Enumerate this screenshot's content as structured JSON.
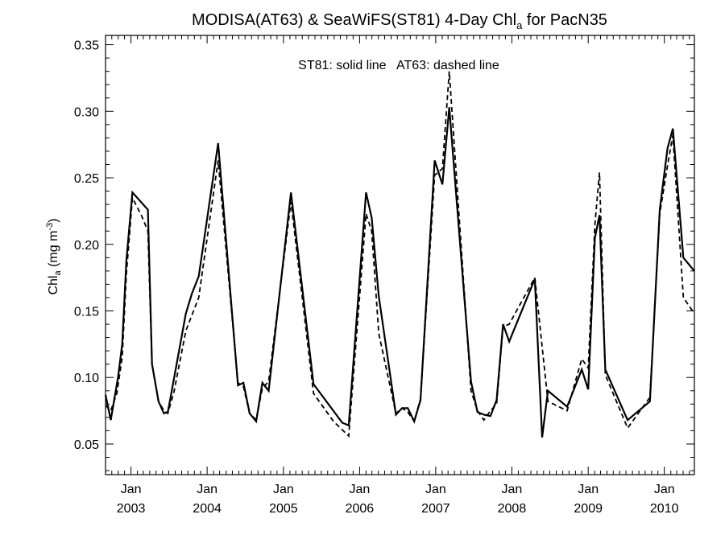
{
  "chart_data": {
    "type": "line",
    "title": "MODISA(AT63) & SeaWiFS(ST81) 4-Day Chl",
    "title_sub": "a",
    "title_suffix": " for PacN35",
    "annotation": "ST81: solid line   AT63: dashed line",
    "ylabel": "Chl",
    "ylabel_sub": "a",
    "ylabel_unit": " (mg m",
    "ylabel_sup": "-3",
    "ylabel_close": ")",
    "ylim": [
      0.027,
      0.357
    ],
    "xlim": [
      "2002-09-01",
      "2010-05-25"
    ],
    "y_ticks": [
      0.05,
      0.1,
      0.15,
      0.2,
      0.25,
      0.3,
      0.35
    ],
    "y_tick_labels": [
      "0.05",
      "0.10",
      "0.15",
      "0.20",
      "0.25",
      "0.30",
      "0.35"
    ],
    "x_ticks": [
      "2003-01-01",
      "2004-01-01",
      "2005-01-01",
      "2006-01-01",
      "2007-01-01",
      "2008-01-01",
      "2009-01-01",
      "2010-01-01"
    ],
    "x_tick_month_labels": [
      "Jan",
      "Jan",
      "Jan",
      "Jan",
      "Jan",
      "Jan",
      "Jan",
      "Jan"
    ],
    "x_tick_year_labels": [
      "2003",
      "2004",
      "2005",
      "2006",
      "2007",
      "2008",
      "2009",
      "2010"
    ],
    "grid": false,
    "series": [
      {
        "name": "ST81",
        "line_style": "solid",
        "color": "#000000",
        "points": [
          [
            "2002-09-01",
            0.087
          ],
          [
            "2002-09-26",
            0.068
          ],
          [
            "2002-10-31",
            0.1
          ],
          [
            "2002-11-20",
            0.125
          ],
          [
            "2002-12-10",
            0.188
          ],
          [
            "2003-01-08",
            0.239
          ],
          [
            "2003-03-23",
            0.226
          ],
          [
            "2003-04-12",
            0.11
          ],
          [
            "2003-05-13",
            0.082
          ],
          [
            "2003-06-08",
            0.073
          ],
          [
            "2003-06-27",
            0.074
          ],
          [
            "2003-09-21",
            0.148
          ],
          [
            "2003-10-20",
            0.163
          ],
          [
            "2003-11-22",
            0.176
          ],
          [
            "2004-02-23",
            0.276
          ],
          [
            "2004-05-28",
            0.094
          ],
          [
            "2004-06-23",
            0.096
          ],
          [
            "2004-07-23",
            0.073
          ],
          [
            "2004-08-23",
            0.067
          ],
          [
            "2004-09-22",
            0.096
          ],
          [
            "2004-10-22",
            0.09
          ],
          [
            "2005-02-06",
            0.239
          ],
          [
            "2005-05-25",
            0.095
          ],
          [
            "2005-10-10",
            0.066
          ],
          [
            "2005-11-10",
            0.064
          ],
          [
            "2006-02-01",
            0.239
          ],
          [
            "2006-02-28",
            0.22
          ],
          [
            "2006-04-03",
            0.161
          ],
          [
            "2006-06-24",
            0.072
          ],
          [
            "2006-07-24",
            0.077
          ],
          [
            "2006-08-20",
            0.077
          ],
          [
            "2006-09-20",
            0.067
          ],
          [
            "2006-10-20",
            0.083
          ],
          [
            "2006-12-27",
            0.263
          ],
          [
            "2007-02-02",
            0.245
          ],
          [
            "2007-03-07",
            0.303
          ],
          [
            "2007-06-19",
            0.097
          ],
          [
            "2007-07-20",
            0.074
          ],
          [
            "2007-08-20",
            0.072
          ],
          [
            "2007-09-20",
            0.071
          ],
          [
            "2007-10-20",
            0.083
          ],
          [
            "2007-11-20",
            0.14
          ],
          [
            "2007-12-19",
            0.127
          ],
          [
            "2008-04-20",
            0.174
          ],
          [
            "2008-05-25",
            0.055
          ],
          [
            "2008-06-22",
            0.09
          ],
          [
            "2008-09-22",
            0.078
          ],
          [
            "2008-12-01",
            0.106
          ],
          [
            "2009-01-01",
            0.091
          ],
          [
            "2009-02-02",
            0.205
          ],
          [
            "2009-02-24",
            0.222
          ],
          [
            "2009-03-24",
            0.106
          ],
          [
            "2009-07-09",
            0.068
          ],
          [
            "2009-10-24",
            0.082
          ],
          [
            "2009-12-10",
            0.226
          ],
          [
            "2010-01-16",
            0.272
          ],
          [
            "2010-02-11",
            0.287
          ],
          [
            "2010-04-02",
            0.19
          ],
          [
            "2010-05-25",
            0.18
          ]
        ]
      },
      {
        "name": "AT63",
        "line_style": "dashed",
        "color": "#000000",
        "points": [
          [
            "2002-09-01",
            0.079
          ],
          [
            "2002-09-26",
            0.075
          ],
          [
            "2002-10-25",
            0.088
          ],
          [
            "2002-11-20",
            0.115
          ],
          [
            "2002-12-10",
            0.178
          ],
          [
            "2003-01-08",
            0.235
          ],
          [
            "2003-02-22",
            0.221
          ],
          [
            "2003-03-23",
            0.21
          ],
          [
            "2003-04-12",
            0.11
          ],
          [
            "2003-05-13",
            0.082
          ],
          [
            "2003-06-08",
            0.075
          ],
          [
            "2003-06-27",
            0.073
          ],
          [
            "2003-07-26",
            0.089
          ],
          [
            "2003-09-21",
            0.135
          ],
          [
            "2003-11-22",
            0.16
          ],
          [
            "2004-02-23",
            0.263
          ],
          [
            "2004-05-28",
            0.096
          ],
          [
            "2004-06-23",
            0.093
          ],
          [
            "2004-07-23",
            0.073
          ],
          [
            "2004-08-23",
            0.068
          ],
          [
            "2004-09-22",
            0.092
          ],
          [
            "2004-10-22",
            0.097
          ],
          [
            "2005-02-06",
            0.232
          ],
          [
            "2005-05-25",
            0.088
          ],
          [
            "2005-08-29",
            0.067
          ],
          [
            "2005-11-10",
            0.056
          ],
          [
            "2006-02-01",
            0.223
          ],
          [
            "2006-02-28",
            0.21
          ],
          [
            "2006-04-03",
            0.133
          ],
          [
            "2006-06-24",
            0.073
          ],
          [
            "2006-07-24",
            0.077
          ],
          [
            "2006-08-20",
            0.074
          ],
          [
            "2006-09-20",
            0.067
          ],
          [
            "2006-10-20",
            0.084
          ],
          [
            "2006-12-27",
            0.252
          ],
          [
            "2007-02-02",
            0.257
          ],
          [
            "2007-03-07",
            0.33
          ],
          [
            "2007-06-19",
            0.09
          ],
          [
            "2007-07-20",
            0.075
          ],
          [
            "2007-08-20",
            0.068
          ],
          [
            "2007-09-20",
            0.075
          ],
          [
            "2007-10-20",
            0.08
          ],
          [
            "2007-11-20",
            0.138
          ],
          [
            "2007-12-19",
            0.14
          ],
          [
            "2008-04-20",
            0.175
          ],
          [
            "2008-06-22",
            0.082
          ],
          [
            "2008-09-22",
            0.075
          ],
          [
            "2008-12-01",
            0.114
          ],
          [
            "2009-01-01",
            0.107
          ],
          [
            "2009-02-02",
            0.215
          ],
          [
            "2009-02-24",
            0.254
          ],
          [
            "2009-03-24",
            0.102
          ],
          [
            "2009-07-09",
            0.062
          ],
          [
            "2009-10-24",
            0.085
          ],
          [
            "2009-12-10",
            0.223
          ],
          [
            "2010-01-16",
            0.259
          ],
          [
            "2010-02-11",
            0.282
          ],
          [
            "2010-04-02",
            0.16
          ],
          [
            "2010-05-25",
            0.148
          ]
        ]
      }
    ]
  }
}
